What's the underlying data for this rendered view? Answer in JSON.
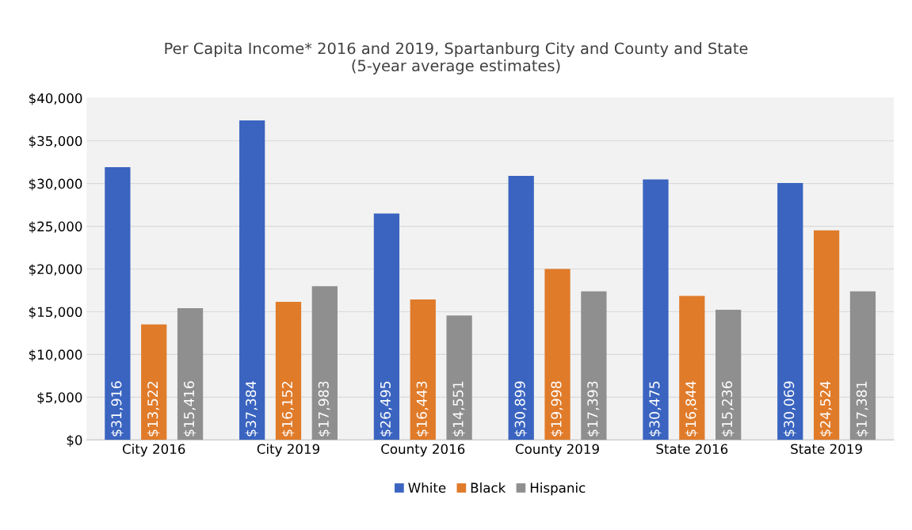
{
  "chart_data": {
    "type": "bar",
    "title": "Per Capita Income* 2016 and 2019, Spartanburg City and County and State\n(5-year average estimates)",
    "categories": [
      "City 2016",
      "City 2019",
      "County 2016",
      "County 2019",
      "State 2016",
      "State 2019"
    ],
    "series": [
      {
        "name": "White",
        "color": "#3a64c0",
        "values": [
          31916,
          37384,
          26495,
          30899,
          30475,
          30069
        ],
        "value_labels": [
          "$31,916",
          "$37,384",
          "$26,495",
          "$30,899",
          "$30,475",
          "$30,069"
        ]
      },
      {
        "name": "Black",
        "color": "#e07b2a",
        "values": [
          13522,
          16152,
          16443,
          19998,
          16844,
          24524
        ],
        "value_labels": [
          "$13,522",
          "$16,152",
          "$16,443",
          "$19,998",
          "$16,844",
          "$24,524"
        ]
      },
      {
        "name": "Hispanic",
        "color": "#8f8f8f",
        "values": [
          15416,
          17983,
          14551,
          17393,
          15236,
          17381
        ],
        "value_labels": [
          "$15,416",
          "$17,983",
          "$14,551",
          "$17,393",
          "$15,236",
          "$17,381"
        ]
      }
    ],
    "ylim": [
      0,
      40000
    ],
    "yticks": [
      {
        "value": 0,
        "label": "$0"
      },
      {
        "value": 5000,
        "label": "$5,000"
      },
      {
        "value": 10000,
        "label": "$10,000"
      },
      {
        "value": 15000,
        "label": "$15,000"
      },
      {
        "value": 20000,
        "label": "$20,000"
      },
      {
        "value": 25000,
        "label": "$25,000"
      },
      {
        "value": 30000,
        "label": "$30,000"
      },
      {
        "value": 35000,
        "label": "$35,000"
      },
      {
        "value": 40000,
        "label": "$40,000"
      }
    ],
    "grid": "y",
    "legend": "bottom"
  }
}
